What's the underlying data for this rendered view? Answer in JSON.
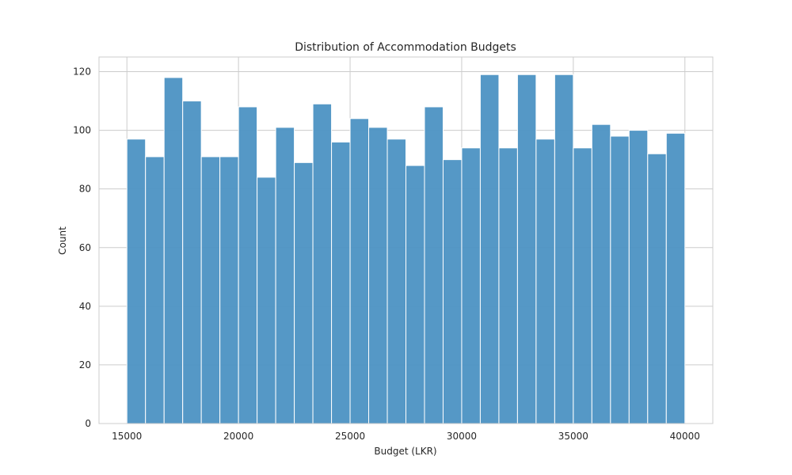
{
  "chart_data": {
    "type": "bar",
    "title": "Distribution of Accommodation Budgets",
    "xlabel": "Budget (LKR)",
    "ylabel": "Count",
    "xlim": [
      13750,
      41250
    ],
    "ylim": [
      0,
      125
    ],
    "grid": true,
    "bar_color": "#4c92c3",
    "bins": [
      {
        "start": 15000,
        "end": 15833,
        "count": 97
      },
      {
        "start": 15833,
        "end": 16667,
        "count": 91
      },
      {
        "start": 16667,
        "end": 17500,
        "count": 118
      },
      {
        "start": 17500,
        "end": 18333,
        "count": 110
      },
      {
        "start": 18333,
        "end": 19167,
        "count": 91
      },
      {
        "start": 19167,
        "end": 20000,
        "count": 91
      },
      {
        "start": 20000,
        "end": 20833,
        "count": 108
      },
      {
        "start": 20833,
        "end": 21667,
        "count": 84
      },
      {
        "start": 21667,
        "end": 22500,
        "count": 101
      },
      {
        "start": 22500,
        "end": 23333,
        "count": 89
      },
      {
        "start": 23333,
        "end": 24167,
        "count": 109
      },
      {
        "start": 24167,
        "end": 25000,
        "count": 96
      },
      {
        "start": 25000,
        "end": 25833,
        "count": 104
      },
      {
        "start": 25833,
        "end": 26667,
        "count": 101
      },
      {
        "start": 26667,
        "end": 27500,
        "count": 97
      },
      {
        "start": 27500,
        "end": 28333,
        "count": 88
      },
      {
        "start": 28333,
        "end": 29167,
        "count": 108
      },
      {
        "start": 29167,
        "end": 30000,
        "count": 90
      },
      {
        "start": 30000,
        "end": 30833,
        "count": 94
      },
      {
        "start": 30833,
        "end": 31667,
        "count": 119
      },
      {
        "start": 31667,
        "end": 32500,
        "count": 94
      },
      {
        "start": 32500,
        "end": 33333,
        "count": 119
      },
      {
        "start": 33333,
        "end": 34167,
        "count": 97
      },
      {
        "start": 34167,
        "end": 35000,
        "count": 119
      },
      {
        "start": 35000,
        "end": 35833,
        "count": 94
      },
      {
        "start": 35833,
        "end": 36667,
        "count": 102
      },
      {
        "start": 36667,
        "end": 37500,
        "count": 98
      },
      {
        "start": 37500,
        "end": 38333,
        "count": 100
      },
      {
        "start": 38333,
        "end": 39167,
        "count": 92
      },
      {
        "start": 39167,
        "end": 40000,
        "count": 99
      }
    ],
    "x_ticks": [
      15000,
      20000,
      25000,
      30000,
      35000,
      40000
    ],
    "y_ticks": [
      0,
      20,
      40,
      60,
      80,
      100,
      120
    ]
  }
}
